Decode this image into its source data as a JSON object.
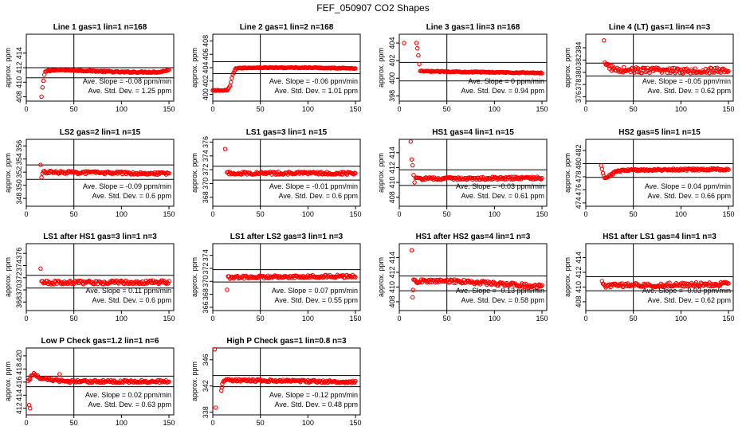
{
  "page": {
    "title": "FEF_050907  CO2 Shapes"
  },
  "chart_data": [
    {
      "type": "scatter",
      "title": "Line 1 gas=1 lin=1 n=168",
      "ylabel": "approx. ppm",
      "xlim": [
        0,
        155
      ],
      "xticks": [
        0,
        50,
        100,
        150
      ],
      "ylim": [
        407.4,
        416.6
      ],
      "yticks": [
        408,
        410,
        412,
        414
      ],
      "hlines": [
        410.6,
        412.0
      ],
      "annotations": [
        "Ave. Slope = -0.08 ppm/min",
        "Ave. Std. Dev. = 1.25 ppm"
      ],
      "series": [
        {
          "x_start": 16,
          "x_end": 150,
          "segments": [
            [
              16,
              408.0
            ],
            [
              17,
              409.2
            ],
            [
              18,
              410.2
            ],
            [
              19,
              411.0
            ],
            [
              20,
              411.4
            ],
            [
              22,
              411.6
            ],
            [
              40,
              411.7
            ],
            [
              100,
              411.4
            ],
            [
              140,
              411.4
            ],
            [
              150,
              411.7
            ]
          ],
          "noise": 0.09
        }
      ]
    },
    {
      "type": "scatter",
      "title": "Line 2 gas=1 lin=2 n=168",
      "ylabel": "approx. ppm",
      "xlim": [
        0,
        155
      ],
      "xticks": [
        0,
        50,
        100,
        150
      ],
      "ylim": [
        399.0,
        409.0
      ],
      "yticks": [
        400,
        402,
        404,
        406,
        408
      ],
      "hlines": [
        403.1,
        404.9
      ],
      "annotations": [
        "Ave. Slope = -0.06 ppm/min",
        "Ave. Std. Dev. = 1.01 ppm"
      ],
      "series": [
        {
          "x_start": 0,
          "x_end": 150,
          "segments": [
            [
              0,
              400.6
            ],
            [
              15,
              400.6
            ],
            [
              18,
              401.2
            ],
            [
              21,
              403.0
            ],
            [
              24,
              403.9
            ],
            [
              40,
              404.0
            ],
            [
              100,
              404.0
            ],
            [
              150,
              403.9
            ]
          ],
          "noise": 0.06
        }
      ]
    },
    {
      "type": "scatter",
      "title": "Line 3 gas=1 lin=3 n=168",
      "ylabel": "approx. ppm",
      "xlim": [
        0,
        155
      ],
      "xticks": [
        0,
        50,
        100,
        150
      ],
      "ylim": [
        397.4,
        405.0
      ],
      "yticks": [
        398,
        400,
        402,
        404
      ],
      "hlines": [
        399.7,
        401.8
      ],
      "annotations": [
        "Ave. Slope = 0 ppm/min",
        "Ave. Std. Dev. = 0.94 ppm"
      ],
      "series": [
        {
          "x_start": 22,
          "x_end": 150,
          "segments": [
            [
              22,
              400.8
            ],
            [
              150,
              400.6
            ]
          ],
          "noise": 0.05,
          "extra": [
            [
              5,
              404.0
            ],
            [
              18,
              404.0
            ],
            [
              19,
              403.4
            ],
            [
              20,
              402.6
            ],
            [
              21,
              401.6
            ]
          ]
        }
      ]
    },
    {
      "type": "scatter",
      "title": "Line 4 (LT) gas=1 lin=4 n=3",
      "ylabel": "approx. ppm",
      "xlim": [
        0,
        155
      ],
      "xticks": [
        0,
        50,
        100,
        150
      ],
      "ylim": [
        375.3,
        386.2
      ],
      "yticks": [
        376,
        378,
        380,
        382,
        384
      ],
      "hlines": [
        379.4,
        381.5
      ],
      "annotations": [
        "Ave. Slope = -0.05 ppm/min",
        "Ave. Std. Dev. = 0.62 ppm"
      ],
      "series": [
        {
          "x_start": 22,
          "x_end": 150,
          "segments": [
            [
              22,
              381.0
            ],
            [
              30,
              380.5
            ],
            [
              60,
              380.3
            ],
            [
              100,
              380.3
            ],
            [
              150,
              380.3
            ]
          ],
          "noise": 0.45,
          "extra": [
            [
              19,
              385.2
            ],
            [
              20,
              381.6
            ],
            [
              21,
              381.3
            ]
          ]
        }
      ]
    },
    {
      "type": "scatter",
      "title": "LS2 gas=2 lin=1 n=15",
      "ylabel": "approx. ppm",
      "xlim": [
        0,
        155
      ],
      "xticks": [
        0,
        50,
        100,
        150
      ],
      "ylim": [
        346.8,
        357.0
      ],
      "yticks": [
        348,
        350,
        352,
        354,
        356
      ],
      "hlines": [
        350.9,
        353.1
      ],
      "annotations": [
        "Ave. Slope = -0.09 ppm/min",
        "Ave. Std. Dev. = 0.6 ppm"
      ],
      "series": [
        {
          "x_start": 18,
          "x_end": 150,
          "segments": [
            [
              18,
              352.0
            ],
            [
              150,
              351.8
            ]
          ],
          "noise": 0.2,
          "extra": [
            [
              15,
              353.1
            ],
            [
              16,
              351.2
            ],
            [
              17,
              351.8
            ]
          ]
        }
      ]
    },
    {
      "type": "scatter",
      "title": "LS1 gas=3 lin=1 n=15",
      "ylabel": "approx. ppm",
      "xlim": [
        0,
        155
      ],
      "xticks": [
        0,
        50,
        100,
        150
      ],
      "ylim": [
        366.7,
        376.4
      ],
      "yticks": [
        368,
        370,
        372,
        374,
        376
      ],
      "hlines": [
        370.5,
        372.5
      ],
      "annotations": [
        "Ave. Slope = -0.01 ppm/min",
        "Ave. Std. Dev. = 0.6 ppm"
      ],
      "series": [
        {
          "x_start": 15,
          "x_end": 150,
          "segments": [
            [
              15,
              371.5
            ],
            [
              150,
              371.5
            ]
          ],
          "noise": 0.2,
          "extra": [
            [
              13,
              375.0
            ]
          ]
        }
      ]
    },
    {
      "type": "scatter",
      "title": "HS1 gas=4 lin=1 n=15",
      "ylabel": "approx. ppm",
      "xlim": [
        0,
        155
      ],
      "xticks": [
        0,
        50,
        100,
        150
      ],
      "ylim": [
        406.8,
        415.8
      ],
      "yticks": [
        408,
        410,
        412,
        414
      ],
      "hlines": [
        409.6,
        411.7
      ],
      "annotations": [
        "Ave. Slope = -0.03 ppm/min",
        "Ave. Std. Dev. = 0.61 ppm"
      ],
      "series": [
        {
          "x_start": 17,
          "x_end": 150,
          "segments": [
            [
              17,
              410.5
            ],
            [
              150,
              410.6
            ]
          ],
          "noise": 0.18,
          "extra": [
            [
              12,
              415.5
            ],
            [
              13,
              413.1
            ],
            [
              14,
              412.3
            ],
            [
              15,
              411.0
            ],
            [
              16,
              410.0
            ]
          ]
        }
      ]
    },
    {
      "type": "scatter",
      "title": "HS2 gas=5 lin=1 n=15",
      "ylabel": "approx. ppm",
      "xlim": [
        0,
        155
      ],
      "xticks": [
        0,
        50,
        100,
        150
      ],
      "ylim": [
        473.5,
        483.7
      ],
      "yticks": [
        474,
        476,
        478,
        480,
        482
      ],
      "hlines": [
        477.9,
        480.0
      ],
      "annotations": [
        "Ave. Slope = 0.04 ppm/min",
        "Ave. Std. Dev. = 0.66 ppm"
      ],
      "series": [
        {
          "x_start": 16,
          "x_end": 150,
          "segments": [
            [
              16,
              479.6
            ],
            [
              19,
              478.0
            ],
            [
              22,
              477.8
            ],
            [
              30,
              478.7
            ],
            [
              40,
              479.0
            ],
            [
              100,
              479.1
            ],
            [
              150,
              479.1
            ]
          ],
          "noise": 0.15
        }
      ]
    },
    {
      "type": "scatter",
      "title": "LS1 after HS1 gas=3 lin=1 n=3",
      "ylabel": "approx. ppm",
      "xlim": [
        0,
        155
      ],
      "xticks": [
        0,
        50,
        100,
        150
      ],
      "ylim": [
        366.6,
        377.6
      ],
      "yticks": [
        368,
        370,
        372,
        374,
        376
      ],
      "hlines": [
        370.3,
        372.4
      ],
      "annotations": [
        "Ave. Slope = 0.11 ppm/min",
        "Ave. Std. Dev. = 0.6 ppm"
      ],
      "series": [
        {
          "x_start": 16,
          "x_end": 150,
          "segments": [
            [
              16,
              371.2
            ],
            [
              150,
              371.3
            ]
          ],
          "noise": 0.3,
          "extra": [
            [
              15,
              373.5
            ]
          ]
        }
      ]
    },
    {
      "type": "scatter",
      "title": "LS1 after LS2 gas=3 lin=1 n=3",
      "ylabel": "approx. ppm",
      "xlim": [
        0,
        155
      ],
      "xticks": [
        0,
        50,
        100,
        150
      ],
      "ylim": [
        365.5,
        375.8
      ],
      "yticks": [
        366,
        368,
        370,
        372,
        374
      ],
      "hlines": [
        369.9,
        371.8
      ],
      "annotations": [
        "Ave. Slope = 0.07 ppm/min",
        "Ave. Std. Dev. = 0.55 ppm"
      ],
      "series": [
        {
          "x_start": 16,
          "x_end": 150,
          "segments": [
            [
              16,
              370.6
            ],
            [
              150,
              370.8
            ]
          ],
          "noise": 0.22,
          "extra": [
            [
              15,
              368.7
            ]
          ]
        }
      ]
    },
    {
      "type": "scatter",
      "title": "HS1 after HS2 gas=4 lin=1 n=3",
      "ylabel": "approx. ppm",
      "xlim": [
        0,
        155
      ],
      "xticks": [
        0,
        50,
        100,
        150
      ],
      "ylim": [
        406.8,
        415.9
      ],
      "yticks": [
        408,
        410,
        412,
        414
      ],
      "hlines": [
        409.5,
        411.5
      ],
      "annotations": [
        "Ave. Slope = -0.13 ppm/min",
        "Ave. Std. Dev. = 0.58 ppm"
      ],
      "series": [
        {
          "x_start": 15,
          "x_end": 150,
          "segments": [
            [
              15,
              410.8
            ],
            [
              60,
              410.8
            ],
            [
              150,
              410.1
            ]
          ],
          "noise": 0.25,
          "extra": [
            [
              13,
              415.0
            ],
            [
              14,
              408.6
            ],
            [
              14.5,
              409.6
            ]
          ]
        }
      ]
    },
    {
      "type": "scatter",
      "title": "HS1 after LS1 gas=4 lin=1 n=3",
      "ylabel": "approx. ppm",
      "xlim": [
        0,
        155
      ],
      "xticks": [
        0,
        50,
        100,
        150
      ],
      "ylim": [
        406.8,
        415.9
      ],
      "yticks": [
        408,
        410,
        412,
        414
      ],
      "hlines": [
        409.5,
        411.4
      ],
      "annotations": [
        "Ave. Slope = -0.03 ppm/min",
        "Ave. Std. Dev. = 0.62 ppm"
      ],
      "series": [
        {
          "x_start": 18,
          "x_end": 150,
          "segments": [
            [
              18,
              410.2
            ],
            [
              150,
              410.4
            ]
          ],
          "noise": 0.28,
          "extra": [
            [
              17,
              410.8
            ]
          ]
        }
      ]
    },
    {
      "type": "scatter",
      "title": "Low P Check gas=1.2 lin=1 n=6",
      "ylabel": "approx. ppm",
      "xlim": [
        0,
        155
      ],
      "xticks": [
        0,
        50,
        100,
        150
      ],
      "ylim": [
        411.0,
        421.2
      ],
      "yticks": [
        412,
        414,
        416,
        418,
        420
      ],
      "hlines": [
        415.3,
        416.9
      ],
      "annotations": [
        "Ave. Slope = 0.02 ppm/min",
        "Ave. Std. Dev. = 0.63 ppm"
      ],
      "series": [
        {
          "x_start": 2,
          "x_end": 150,
          "segments": [
            [
              2,
              416.0
            ],
            [
              5,
              416.8
            ],
            [
              8,
              417.3
            ],
            [
              15,
              416.6
            ],
            [
              40,
              416.1
            ],
            [
              150,
              416.1
            ]
          ],
          "noise": 0.2,
          "extra": [
            [
              3,
              412.5
            ],
            [
              4,
              412.0
            ],
            [
              35,
              417.2
            ]
          ]
        }
      ]
    },
    {
      "type": "scatter",
      "title": "High P Check gas=1 lin=0.8 n=3",
      "ylabel": "approx. ppm",
      "xlim": [
        0,
        155
      ],
      "xticks": [
        0,
        50,
        100,
        150
      ],
      "ylim": [
        337.6,
        347.8
      ],
      "yticks": [
        338,
        342,
        346
      ],
      "hlines": [
        341.9,
        343.6
      ],
      "annotations": [
        "Ave. Slope = -0.12 ppm/min",
        "Ave. Std. Dev. = 0.48 ppm"
      ],
      "series": [
        {
          "x_start": 10,
          "x_end": 150,
          "segments": [
            [
              10,
              342.5
            ],
            [
              15,
              342.9
            ],
            [
              150,
              342.6
            ]
          ],
          "noise": 0.18,
          "extra": [
            [
              2,
              347.6
            ],
            [
              3,
              338.7
            ],
            [
              9,
              341.3
            ],
            [
              9.5,
              341.8
            ]
          ]
        }
      ]
    }
  ]
}
